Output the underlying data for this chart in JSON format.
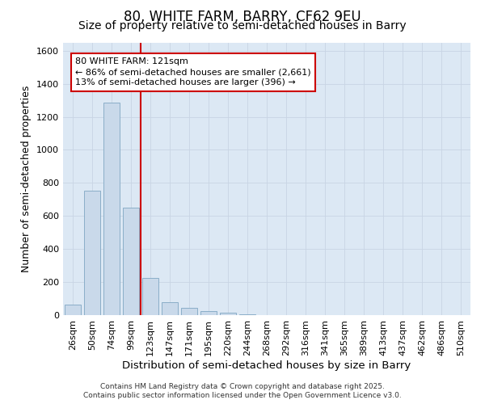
{
  "title": "80, WHITE FARM, BARRY, CF62 9EU",
  "subtitle": "Size of property relative to semi-detached houses in Barry",
  "xlabel": "Distribution of semi-detached houses by size in Barry",
  "ylabel": "Number of semi-detached properties",
  "categories": [
    "26sqm",
    "50sqm",
    "74sqm",
    "99sqm",
    "123sqm",
    "147sqm",
    "171sqm",
    "195sqm",
    "220sqm",
    "244sqm",
    "268sqm",
    "292sqm",
    "316sqm",
    "341sqm",
    "365sqm",
    "389sqm",
    "413sqm",
    "437sqm",
    "462sqm",
    "486sqm",
    "510sqm"
  ],
  "values": [
    65,
    755,
    1285,
    650,
    225,
    80,
    45,
    25,
    15,
    5,
    2,
    0,
    0,
    0,
    0,
    0,
    0,
    0,
    0,
    0,
    0
  ],
  "bar_color": "#c9d9ea",
  "bar_edge_color": "#8aaec8",
  "vline_color": "#cc0000",
  "vline_bar_index": 4,
  "annotation_line1": "80 WHITE FARM: 121sqm",
  "annotation_line2": "← 86% of semi-detached houses are smaller (2,661)",
  "annotation_line3": "13% of semi-detached houses are larger (396) →",
  "annotation_box_edgecolor": "#cc0000",
  "ylim": [
    0,
    1650
  ],
  "yticks": [
    0,
    200,
    400,
    600,
    800,
    1000,
    1200,
    1400,
    1600
  ],
  "grid_color": "#c8d4e4",
  "bg_color": "#dce8f4",
  "footer_line1": "Contains HM Land Registry data © Crown copyright and database right 2025.",
  "footer_line2": "Contains public sector information licensed under the Open Government Licence v3.0.",
  "title_fontsize": 12,
  "subtitle_fontsize": 10,
  "tick_fontsize": 8,
  "ylabel_fontsize": 9,
  "xlabel_fontsize": 9.5
}
